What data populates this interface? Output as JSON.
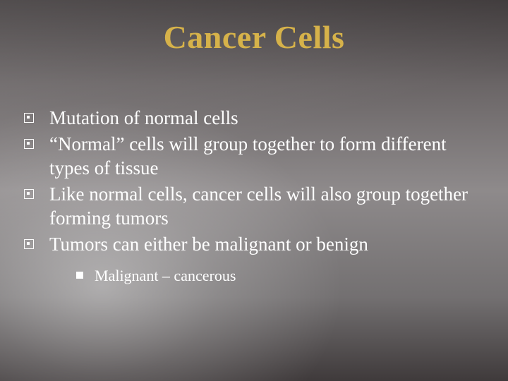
{
  "title": "Cancer Cells",
  "title_color": "#d6b24a",
  "title_fontsize": 46,
  "body_fontsize": 27,
  "sub_fontsize": 22,
  "text_color": "#ffffff",
  "bullets": [
    {
      "text": "Mutation of normal cells"
    },
    {
      "text": "“Normal” cells will group together to form different types of tissue"
    },
    {
      "text": "Like normal cells, cancer cells will also group together forming tumors"
    },
    {
      "text": "Tumors can either be malignant or benign"
    }
  ],
  "sub_bullets": [
    {
      "text": "Malignant – cancerous"
    }
  ],
  "background": {
    "base_gradient": [
      "#3a3536",
      "#6a6566",
      "#8e8a8b",
      "#737071",
      "#3f3a3b"
    ],
    "spotlight_center": [
      0.2,
      0.75
    ],
    "spotlight_color": "rgba(255,255,255,0.42)"
  }
}
